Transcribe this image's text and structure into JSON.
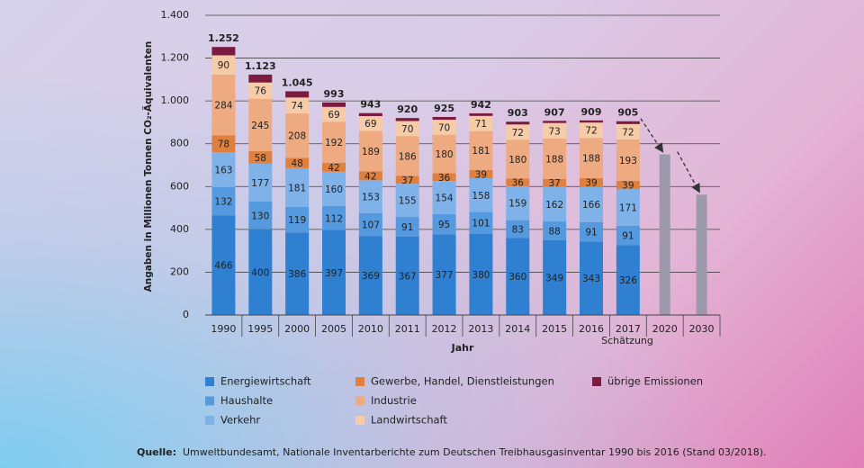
{
  "chart_data": {
    "type": "stacked_bar",
    "ylabel": "Angaben in Millionen Tonnen CO₂-Äquivalenten",
    "xlabel": "Jahr",
    "annotation": "Schätzung",
    "source_label": "Quelle:",
    "source": "Umweltbundesamt, Nationale Inventarberichte zum Deutschen Treibhausgasinventar 1990 bis 2016 (Stand 03/2018).",
    "categories": [
      "1990",
      "1995",
      "2000",
      "2005",
      "2010",
      "2011",
      "2012",
      "2013",
      "2014",
      "2015",
      "2016",
      "2017",
      "2020",
      "2030"
    ],
    "ylim": [
      0,
      1400
    ],
    "yticks": [
      0,
      200,
      400,
      600,
      800,
      {
        "value": 1000,
        "label": "1.000"
      },
      {
        "value": 1200,
        "label": "1.200"
      },
      {
        "value": 1400,
        "label": "1.400"
      }
    ],
    "grid": true,
    "series": [
      {
        "name": "Energiewirtschaft",
        "color": "#2f80d1",
        "values": [
          466,
          400,
          386,
          397,
          369,
          367,
          377,
          380,
          360,
          349,
          343,
          326,
          null,
          null
        ]
      },
      {
        "name": "Haushalte",
        "color": "#559ade",
        "values": [
          132,
          130,
          119,
          112,
          107,
          91,
          95,
          101,
          83,
          88,
          91,
          91,
          null,
          null
        ]
      },
      {
        "name": "Verkehr",
        "color": "#7fb2e8",
        "values": [
          163,
          177,
          181,
          160,
          153,
          155,
          154,
          158,
          159,
          162,
          166,
          171,
          null,
          null
        ]
      },
      {
        "name": "Gewerbe, Handel, Dienstleistungen",
        "color": "#e0803f",
        "values": [
          78,
          58,
          48,
          42,
          42,
          37,
          36,
          39,
          36,
          37,
          39,
          39,
          null,
          null
        ]
      },
      {
        "name": "Industrie",
        "color": "#eeab82",
        "values": [
          284,
          245,
          208,
          192,
          189,
          186,
          180,
          181,
          180,
          188,
          188,
          193,
          null,
          null
        ]
      },
      {
        "name": "Landwirtschaft",
        "color": "#f5cba8",
        "values": [
          90,
          76,
          74,
          69,
          69,
          70,
          70,
          71,
          72,
          73,
          72,
          72,
          null,
          null
        ]
      },
      {
        "name": "übrige Emissionen",
        "color": "#7b1b40",
        "show_labels": false,
        "values": [
          39,
          37,
          29,
          21,
          14,
          14,
          13,
          12,
          13,
          10,
          10,
          13,
          null,
          null
        ]
      }
    ],
    "targets": {
      "color": "#9b99aa",
      "values": [
        null,
        null,
        null,
        null,
        null,
        null,
        null,
        null,
        null,
        null,
        null,
        null,
        750,
        562
      ]
    },
    "totals": {
      "values": [
        1252,
        1123,
        1045,
        993,
        943,
        920,
        925,
        942,
        903,
        907,
        909,
        905,
        null,
        null
      ],
      "value_labels": [
        "1.252",
        "1.123",
        "1.045",
        "993",
        "943",
        "920",
        "925",
        "942",
        "903",
        "907",
        "909",
        "905",
        null,
        null
      ]
    }
  }
}
